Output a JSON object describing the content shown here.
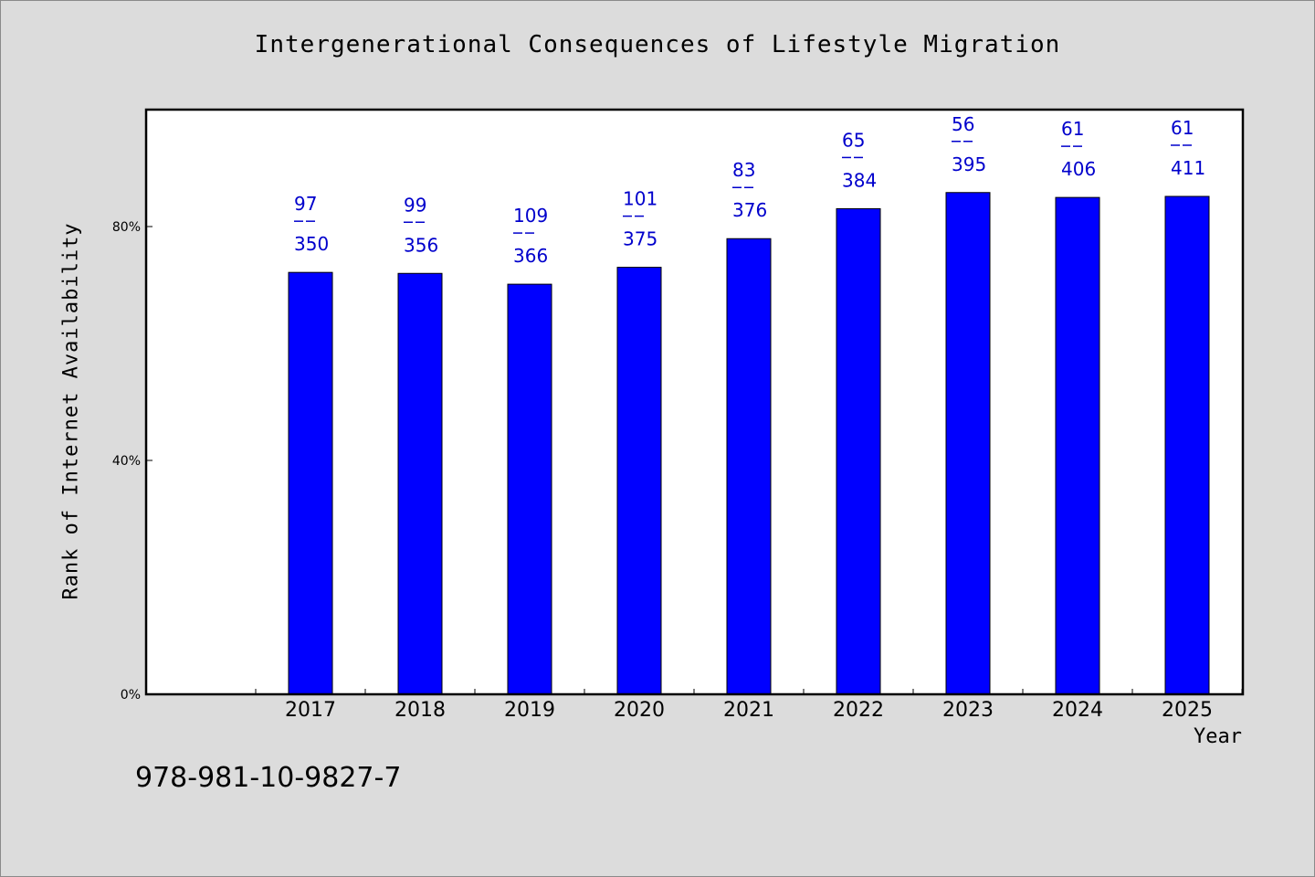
{
  "chart_data": {
    "type": "bar",
    "title": "Intergenerational Consequences of Lifestyle Migration",
    "xlabel": "Year",
    "ylabel": "Rank of Internet Availability",
    "categories": [
      "2017",
      "2018",
      "2019",
      "2020",
      "2021",
      "2022",
      "2023",
      "2024",
      "2025"
    ],
    "series": [
      {
        "values": [
          0.7216,
          0.7199,
          0.7014,
          0.7303,
          0.7793,
          0.8306,
          0.8582,
          0.8498,
          0.8516
        ],
        "numerators": [
          "97",
          "99",
          "109",
          "101",
          "83",
          "65",
          "56",
          "61",
          "61"
        ],
        "denominators": [
          "350",
          "356",
          "366",
          "375",
          "376",
          "384",
          "395",
          "406",
          "411"
        ]
      }
    ],
    "ylim": [
      0,
      1
    ],
    "yticks": [
      0,
      0.4,
      0.8
    ],
    "ytick_labels": [
      "0%",
      "40%",
      "80%"
    ],
    "bar_color": "#0000ff",
    "label_color": "#0000cc",
    "grid": false
  },
  "footer": {
    "isbn": "978-981-10-9827-7"
  }
}
